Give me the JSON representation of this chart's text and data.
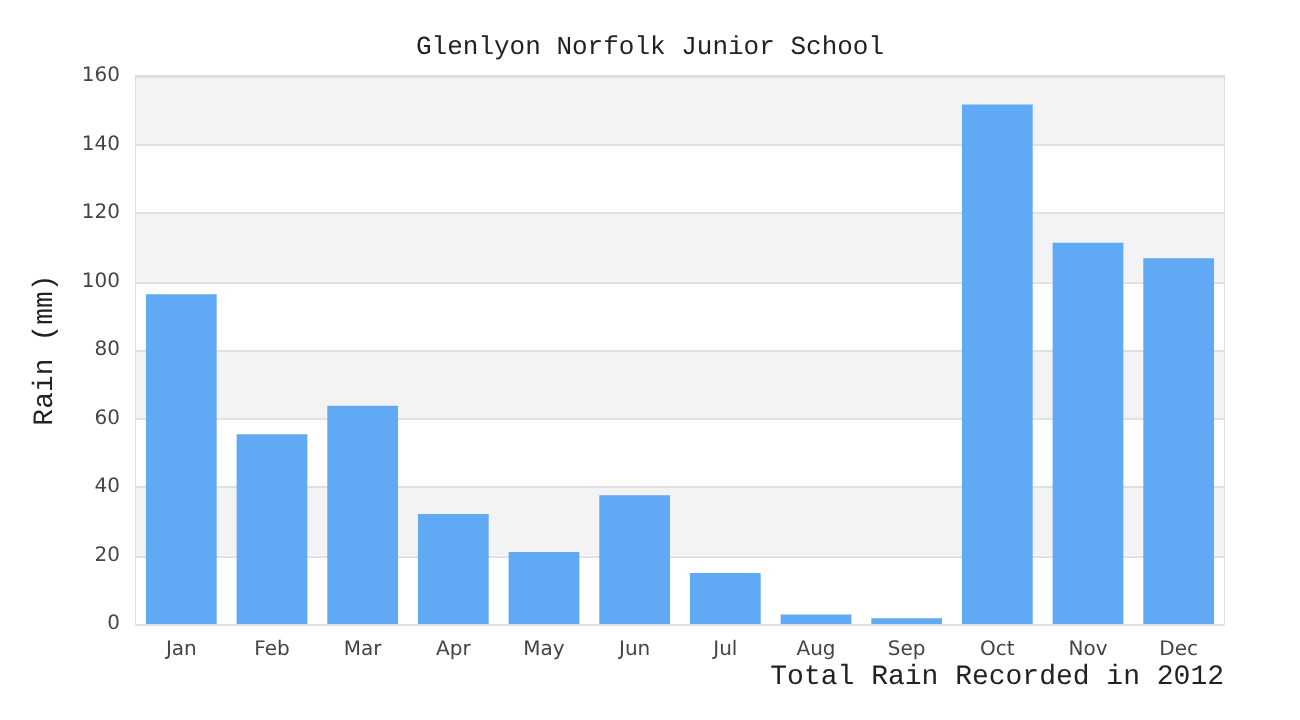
{
  "chart_data": {
    "type": "bar",
    "title": "Glenlyon Norfolk Junior School",
    "xlabel": "Total Rain Recorded in 2012",
    "ylabel": "Rain (mm)",
    "categories": [
      "Jan",
      "Feb",
      "Mar",
      "Apr",
      "May",
      "Jun",
      "Jul",
      "Aug",
      "Sep",
      "Oct",
      "Nov",
      "Dec"
    ],
    "values": [
      96.3,
      55.4,
      63.7,
      32.1,
      21.0,
      37.6,
      14.9,
      2.8,
      1.7,
      151.7,
      111.3,
      106.8
    ],
    "color": "#60a9f5",
    "ylim": [
      0,
      160
    ],
    "yticks": [
      0,
      20,
      40,
      60,
      80,
      100,
      120,
      140,
      160
    ],
    "grid": "y"
  }
}
